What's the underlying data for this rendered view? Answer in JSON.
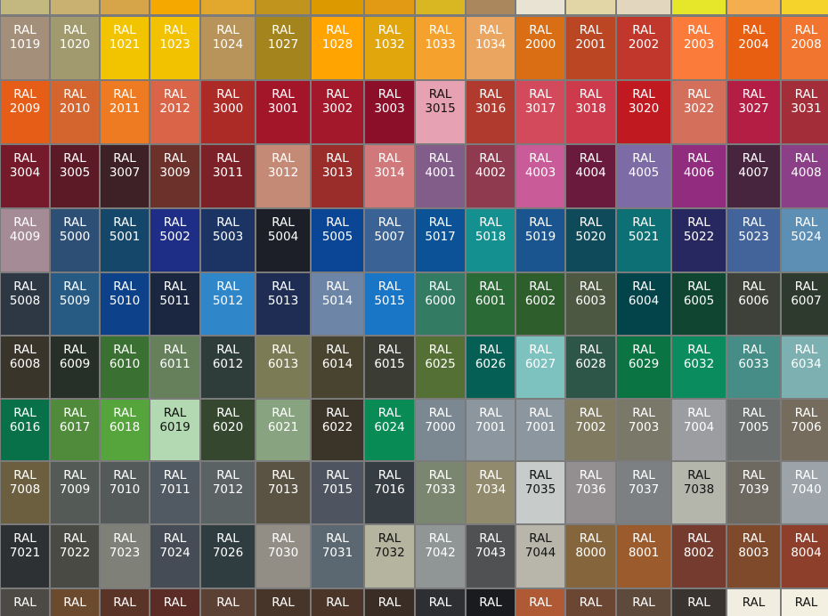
{
  "top_strip": {
    "left": [
      "#c3b880",
      "#c9b172",
      "#d6a54a",
      "#f4a800",
      "#e2a82d",
      "#c1941d",
      "#dc9a00",
      "#e29a14"
    ],
    "right": [
      "#d9b723",
      "#ab875e",
      "#e8e3d2",
      "#e3d6a6",
      "#e3d6bf",
      "#e6e62b",
      "#f4ae4d",
      "#f6d32b"
    ]
  },
  "left_rows": [
    [
      [
        "RAL",
        "1019",
        "#a48f7a"
      ],
      [
        "RAL",
        "1020",
        "#a09a6e"
      ],
      [
        "RAL",
        "1021",
        "#f2c400"
      ],
      [
        "RAL",
        "1023",
        "#f2c100"
      ],
      [
        "RAL",
        "1024",
        "#b8945b"
      ],
      [
        "RAL",
        "1027",
        "#a4841d"
      ],
      [
        "RAL",
        "1028",
        "#ffa400"
      ],
      [
        "RAL",
        "1032",
        "#e2a60d"
      ]
    ],
    [
      [
        "RAL",
        "2009",
        "#e65d17"
      ],
      [
        "RAL",
        "2010",
        "#d4652e"
      ],
      [
        "RAL",
        "2011",
        "#ee7a21"
      ],
      [
        "RAL",
        "2012",
        "#da6448"
      ],
      [
        "RAL",
        "3000",
        "#ac2b26"
      ],
      [
        "RAL",
        "3001",
        "#a3162a"
      ],
      [
        "RAL",
        "3002",
        "#a3182a"
      ],
      [
        "RAL",
        "3003",
        "#8b0f29"
      ]
    ],
    [
      [
        "RAL",
        "3004",
        "#741a2a"
      ],
      [
        "RAL",
        "3005",
        "#5c1a26"
      ],
      [
        "RAL",
        "3007",
        "#3e2126"
      ],
      [
        "RAL",
        "3009",
        "#6c312b"
      ],
      [
        "RAL",
        "3011",
        "#7c2127"
      ],
      [
        "RAL",
        "3012",
        "#c48a76"
      ],
      [
        "RAL",
        "3013",
        "#9a2c29"
      ],
      [
        "RAL",
        "3014",
        "#d0787a"
      ]
    ],
    [
      [
        "RAL",
        "4009",
        "#a48b95"
      ],
      [
        "RAL",
        "5000",
        "#2d4f76"
      ],
      [
        "RAL",
        "5001",
        "#15476a"
      ],
      [
        "RAL",
        "5002",
        "#1e2e87"
      ],
      [
        "RAL",
        "5003",
        "#1b3463"
      ],
      [
        "RAL",
        "5004",
        "#1c1e28"
      ],
      [
        "RAL",
        "5005",
        "#0b4596"
      ],
      [
        "RAL",
        "5007",
        "#3a6294"
      ]
    ],
    [
      [
        "RAL",
        "5008",
        "#2d3844"
      ],
      [
        "RAL",
        "5009",
        "#275b84"
      ],
      [
        "RAL",
        "5010",
        "#0d4189"
      ],
      [
        "RAL",
        "5011",
        "#1b2640"
      ],
      [
        "RAL",
        "5012",
        "#2f86c8"
      ],
      [
        "RAL",
        "5013",
        "#1f2d55"
      ],
      [
        "RAL",
        "5014",
        "#6d86a7"
      ],
      [
        "RAL",
        "5015",
        "#1975c6"
      ]
    ],
    [
      [
        "RAL",
        "6008",
        "#39352b"
      ],
      [
        "RAL",
        "6009",
        "#273028"
      ],
      [
        "RAL",
        "6010",
        "#3a7031"
      ],
      [
        "RAL",
        "6011",
        "#66805c"
      ],
      [
        "RAL",
        "6012",
        "#2f3d3a"
      ],
      [
        "RAL",
        "6013",
        "#7b7b56"
      ],
      [
        "RAL",
        "6014",
        "#48442f"
      ],
      [
        "RAL",
        "6015",
        "#3b3d34"
      ]
    ],
    [
      [
        "RAL",
        "6016",
        "#09714a"
      ],
      [
        "RAL",
        "6017",
        "#4f8b3a"
      ],
      [
        "RAL",
        "6018",
        "#56a43c"
      ],
      [
        "RAL",
        "6019",
        "#b3d9b2",
        "dark"
      ],
      [
        "RAL",
        "6020",
        "#35472f"
      ],
      [
        "RAL",
        "6021",
        "#88a37f"
      ],
      [
        "RAL",
        "6022",
        "#3b3429"
      ],
      [
        "RAL",
        "6024",
        "#098b56"
      ]
    ],
    [
      [
        "RAL",
        "7008",
        "#6c5f40"
      ],
      [
        "RAL",
        "7009",
        "#545a55"
      ],
      [
        "RAL",
        "7010",
        "#545a5a"
      ],
      [
        "RAL",
        "7011",
        "#515a62"
      ],
      [
        "RAL",
        "7012",
        "#5b6263"
      ],
      [
        "RAL",
        "7013",
        "#5a5343"
      ],
      [
        "RAL",
        "7015",
        "#4f5560"
      ],
      [
        "RAL",
        "7016",
        "#373e43"
      ]
    ],
    [
      [
        "RAL",
        "7021",
        "#2e3134"
      ],
      [
        "RAL",
        "7022",
        "#4a4a44"
      ],
      [
        "RAL",
        "7023",
        "#7f8178"
      ],
      [
        "RAL",
        "7024",
        "#464c56"
      ],
      [
        "RAL",
        "7026",
        "#2f3c40"
      ],
      [
        "RAL",
        "7030",
        "#928e85"
      ],
      [
        "RAL",
        "7031",
        "#5b6872"
      ],
      [
        "RAL",
        "7032",
        "#b5b49f",
        "dark"
      ]
    ]
  ],
  "right_rows": [
    [
      [
        "RAL",
        "1033",
        "#f5a12e"
      ],
      [
        "RAL",
        "1034",
        "#eaa660"
      ],
      [
        "RAL",
        "2000",
        "#da6e14"
      ],
      [
        "RAL",
        "2001",
        "#bb4624"
      ],
      [
        "RAL",
        "2002",
        "#c1372b"
      ],
      [
        "RAL",
        "2003",
        "#fa7b3a"
      ],
      [
        "RAL",
        "2004",
        "#e95f12"
      ],
      [
        "RAL",
        "2008",
        "#f2752f"
      ]
    ],
    [
      [
        "RAL",
        "3015",
        "#e6a2b3",
        "dark"
      ],
      [
        "RAL",
        "3016",
        "#b03a2e"
      ],
      [
        "RAL",
        "3017",
        "#d24a5c"
      ],
      [
        "RAL",
        "3018",
        "#cc3a4c"
      ],
      [
        "RAL",
        "3020",
        "#c01a20"
      ],
      [
        "RAL",
        "3022",
        "#d46f5c"
      ],
      [
        "RAL",
        "3027",
        "#b51e44"
      ],
      [
        "RAL",
        "3031",
        "#a32e39"
      ]
    ],
    [
      [
        "RAL",
        "4001",
        "#825d8a"
      ],
      [
        "RAL",
        "4002",
        "#8f3a4f"
      ],
      [
        "RAL",
        "4003",
        "#c95b98"
      ],
      [
        "RAL",
        "4004",
        "#6a1a3d"
      ],
      [
        "RAL",
        "4005",
        "#7c6ba5"
      ],
      [
        "RAL",
        "4006",
        "#912c7e"
      ],
      [
        "RAL",
        "4007",
        "#48253e"
      ],
      [
        "RAL",
        "4008",
        "#8a3f86"
      ]
    ],
    [
      [
        "RAL",
        "5017",
        "#0c5297"
      ],
      [
        "RAL",
        "5018",
        "#13908f"
      ],
      [
        "RAL",
        "5019",
        "#1b5590"
      ],
      [
        "RAL",
        "5020",
        "#0f4a5b"
      ],
      [
        "RAL",
        "5021",
        "#0d7075"
      ],
      [
        "RAL",
        "5022",
        "#272860"
      ],
      [
        "RAL",
        "5023",
        "#42649a"
      ],
      [
        "RAL",
        "5024",
        "#5d8fb5"
      ]
    ],
    [
      [
        "RAL",
        "6000",
        "#337c63"
      ],
      [
        "RAL",
        "6001",
        "#2a6a36"
      ],
      [
        "RAL",
        "6002",
        "#2d5e2c"
      ],
      [
        "RAL",
        "6003",
        "#4d5842"
      ],
      [
        "RAL",
        "6004",
        "#03434a"
      ],
      [
        "RAL",
        "6005",
        "#104532"
      ],
      [
        "RAL",
        "6006",
        "#3e413a"
      ],
      [
        "RAL",
        "6007",
        "#2e3a2d"
      ]
    ],
    [
      [
        "RAL",
        "6025",
        "#557034"
      ],
      [
        "RAL",
        "6026",
        "#055f55"
      ],
      [
        "RAL",
        "6027",
        "#7ec2c0"
      ],
      [
        "RAL",
        "6028",
        "#2d5648"
      ],
      [
        "RAL",
        "6029",
        "#0a7542"
      ],
      [
        "RAL",
        "6032",
        "#0b8c5e"
      ],
      [
        "RAL",
        "6033",
        "#458d86"
      ],
      [
        "RAL",
        "6034",
        "#7cb0b1"
      ]
    ],
    [
      [
        "RAL",
        "7000",
        "#7b8892"
      ],
      [
        "RAL",
        "7001",
        "#8c969e"
      ],
      [
        "RAL",
        "7001",
        "#8c969e"
      ],
      [
        "RAL",
        "7002",
        "#807a61"
      ],
      [
        "RAL",
        "7003",
        "#7a7868"
      ],
      [
        "RAL",
        "7004",
        "#9c9da1"
      ],
      [
        "RAL",
        "7005",
        "#6a6e6d"
      ],
      [
        "RAL",
        "7006",
        "#756c5e"
      ]
    ],
    [
      [
        "RAL",
        "7033",
        "#7b8670"
      ],
      [
        "RAL",
        "7034",
        "#918a6c"
      ],
      [
        "RAL",
        "7035",
        "#c7ccca",
        "dark"
      ],
      [
        "RAL",
        "7036",
        "#938f90"
      ],
      [
        "RAL",
        "7037",
        "#7c8082"
      ],
      [
        "RAL",
        "7038",
        "#b4b6ab",
        "dark"
      ],
      [
        "RAL",
        "7039",
        "#6d6860"
      ],
      [
        "RAL",
        "7040",
        "#9ca3a9"
      ]
    ],
    [
      [
        "RAL",
        "7042",
        "#909596"
      ],
      [
        "RAL",
        "7043",
        "#4f5152"
      ],
      [
        "RAL",
        "7044",
        "#b8b6aa",
        "dark"
      ],
      [
        "RAL",
        "8000",
        "#85663c"
      ],
      [
        "RAL",
        "8001",
        "#9b5b2d"
      ],
      [
        "RAL",
        "8002",
        "#753b2f"
      ],
      [
        "RAL",
        "8003",
        "#7f4a2b"
      ],
      [
        "RAL",
        "8004",
        "#8e3f2c"
      ]
    ]
  ],
  "bottom_partial": {
    "left": [
      [
        "RAL",
        "#4d4945"
      ],
      [
        "RAL",
        "#6c4a2e"
      ],
      [
        "RAL",
        "#5a3427"
      ],
      [
        "RAL",
        "#5b2b25"
      ],
      [
        "RAL",
        "#5b4133"
      ],
      [
        "RAL",
        "#48352a"
      ],
      [
        "RAL",
        "#4a3528"
      ],
      [
        "RAL",
        "#3a2d25"
      ]
    ],
    "right": [
      [
        "RAL",
        "#2d2f33"
      ],
      [
        "RAL",
        "#1a1b1e"
      ],
      [
        "RAL",
        "#b05a35"
      ],
      [
        "RAL",
        "#6b4632"
      ],
      [
        "RAL",
        "#5e4a3b"
      ],
      [
        "RAL",
        "#3a3431"
      ],
      [
        "RAL",
        "#f1ede1",
        "dark"
      ],
      [
        "RAL",
        "#f3f0e2",
        "dark"
      ]
    ]
  }
}
